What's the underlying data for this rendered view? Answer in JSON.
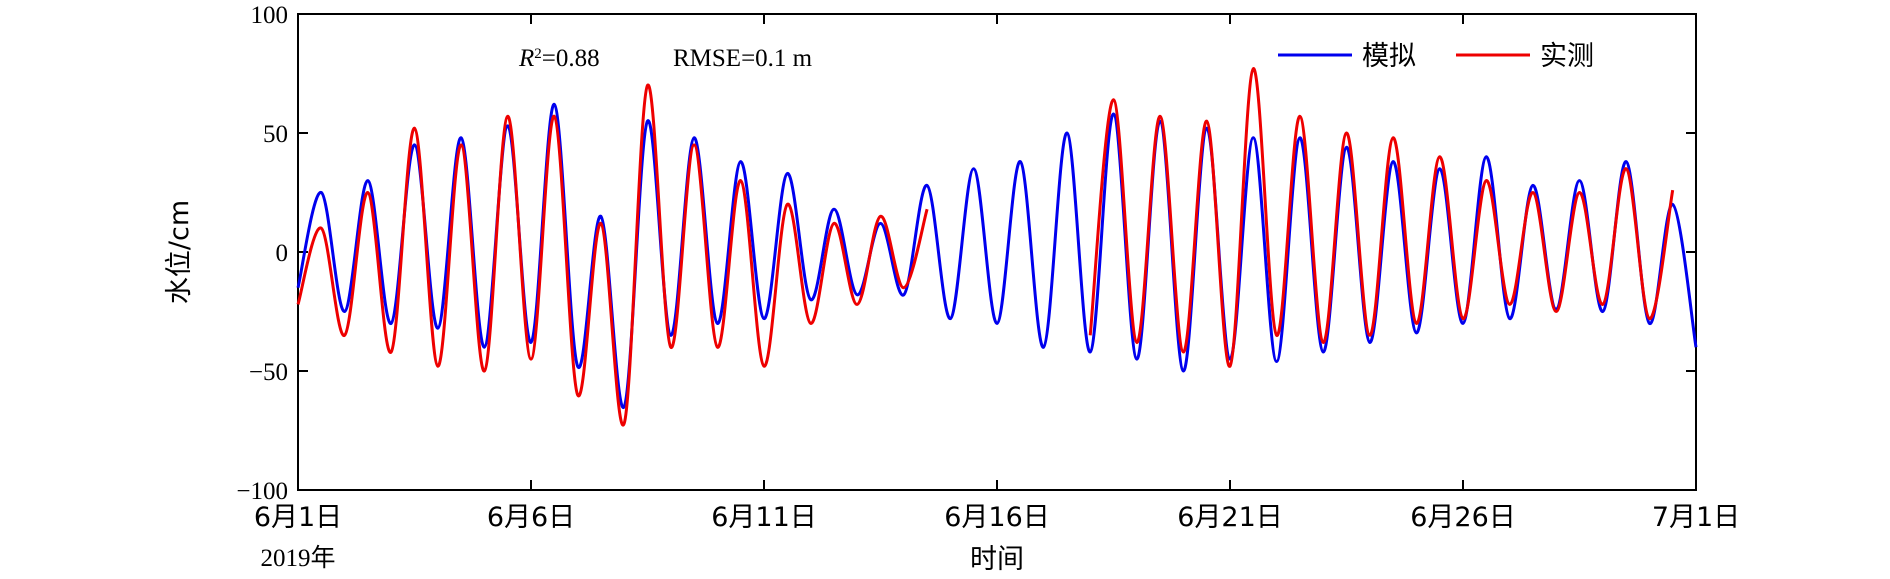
{
  "chart_data": {
    "type": "line",
    "xlabel": "时间",
    "ylabel": "水位/cm",
    "ylim": [
      -100,
      100
    ],
    "xlim_days": [
      0,
      30
    ],
    "yticks": [
      -100,
      -50,
      0,
      50,
      100
    ],
    "ytick_labels": [
      "−100",
      "−50",
      "0",
      "50",
      "100"
    ],
    "xticks": [
      0,
      5,
      10,
      15,
      20,
      25,
      30
    ],
    "xtick_labels": [
      "6月1日",
      "6月6日",
      "6月11日",
      "6月16日",
      "6月21日",
      "6月26日",
      "7月1日"
    ],
    "year_label": "2019年",
    "annotation": {
      "r2_label": "R",
      "r2_sup": "2",
      "r2_value": "=0.88",
      "rmse": "RMSE=0.1 m"
    },
    "legend_position": "top-right",
    "grid": false,
    "series": [
      {
        "name": "模拟",
        "color": "#0000ee",
        "x": [
          0,
          0.5,
          1,
          1.5,
          2,
          2.5,
          3,
          3.5,
          4,
          4.5,
          5,
          5.5,
          6,
          6.5,
          7,
          7.5,
          8,
          8.5,
          9,
          9.5,
          10,
          10.5,
          11,
          11.5,
          12,
          12.5,
          13,
          13.5,
          14,
          14.5,
          15,
          15.5,
          16,
          16.5,
          17,
          17.5,
          18,
          18.5,
          19,
          19.5,
          20,
          20.5,
          21,
          21.5,
          22,
          22.5,
          23,
          23.5,
          24,
          24.5,
          25,
          25.5,
          26,
          26.5,
          27,
          27.5,
          28,
          28.5,
          29,
          29.5,
          30
        ],
        "values": [
          -15,
          25,
          -25,
          30,
          -30,
          45,
          -32,
          48,
          -40,
          53,
          -38,
          62,
          -48,
          15,
          -65,
          55,
          -35,
          48,
          -30,
          38,
          -28,
          33,
          -20,
          18,
          -18,
          12,
          -18,
          28,
          -28,
          35,
          -30,
          38,
          -40,
          50,
          -42,
          58,
          -45,
          55,
          -50,
          52,
          -45,
          48,
          -46,
          48,
          -42,
          44,
          -38,
          38,
          -34,
          35,
          -30,
          40,
          -28,
          28,
          -24,
          30,
          -25,
          38,
          -30,
          20,
          -40
        ]
      },
      {
        "name": "实测",
        "color": "#ee0000",
        "x": [
          0,
          0.5,
          1,
          1.5,
          2,
          2.5,
          3,
          3.5,
          4,
          4.5,
          5,
          5.5,
          6,
          6.5,
          7,
          7.5,
          8,
          8.5,
          9,
          9.5,
          10,
          10.5,
          11,
          11.5,
          12,
          12.5,
          13,
          13.5,
          17,
          17.5,
          18,
          18.5,
          19,
          19.5,
          20,
          20.5,
          21,
          21.5,
          22,
          22.5,
          23,
          23.5,
          24,
          24.5,
          25,
          25.5,
          26,
          26.5,
          27,
          27.5,
          28,
          28.5,
          29,
          29.5
        ],
        "values": [
          -22,
          10,
          -35,
          25,
          -42,
          52,
          -48,
          45,
          -50,
          57,
          -45,
          57,
          -60,
          12,
          -72,
          70,
          -40,
          45,
          -40,
          30,
          -48,
          20,
          -30,
          12,
          -22,
          15,
          -15,
          18,
          -35,
          64,
          -38,
          57,
          -42,
          55,
          -48,
          77,
          -35,
          57,
          -38,
          50,
          -35,
          48,
          -30,
          40,
          -28,
          30,
          -22,
          25,
          -25,
          25,
          -22,
          35,
          -28,
          26
        ]
      }
    ]
  }
}
